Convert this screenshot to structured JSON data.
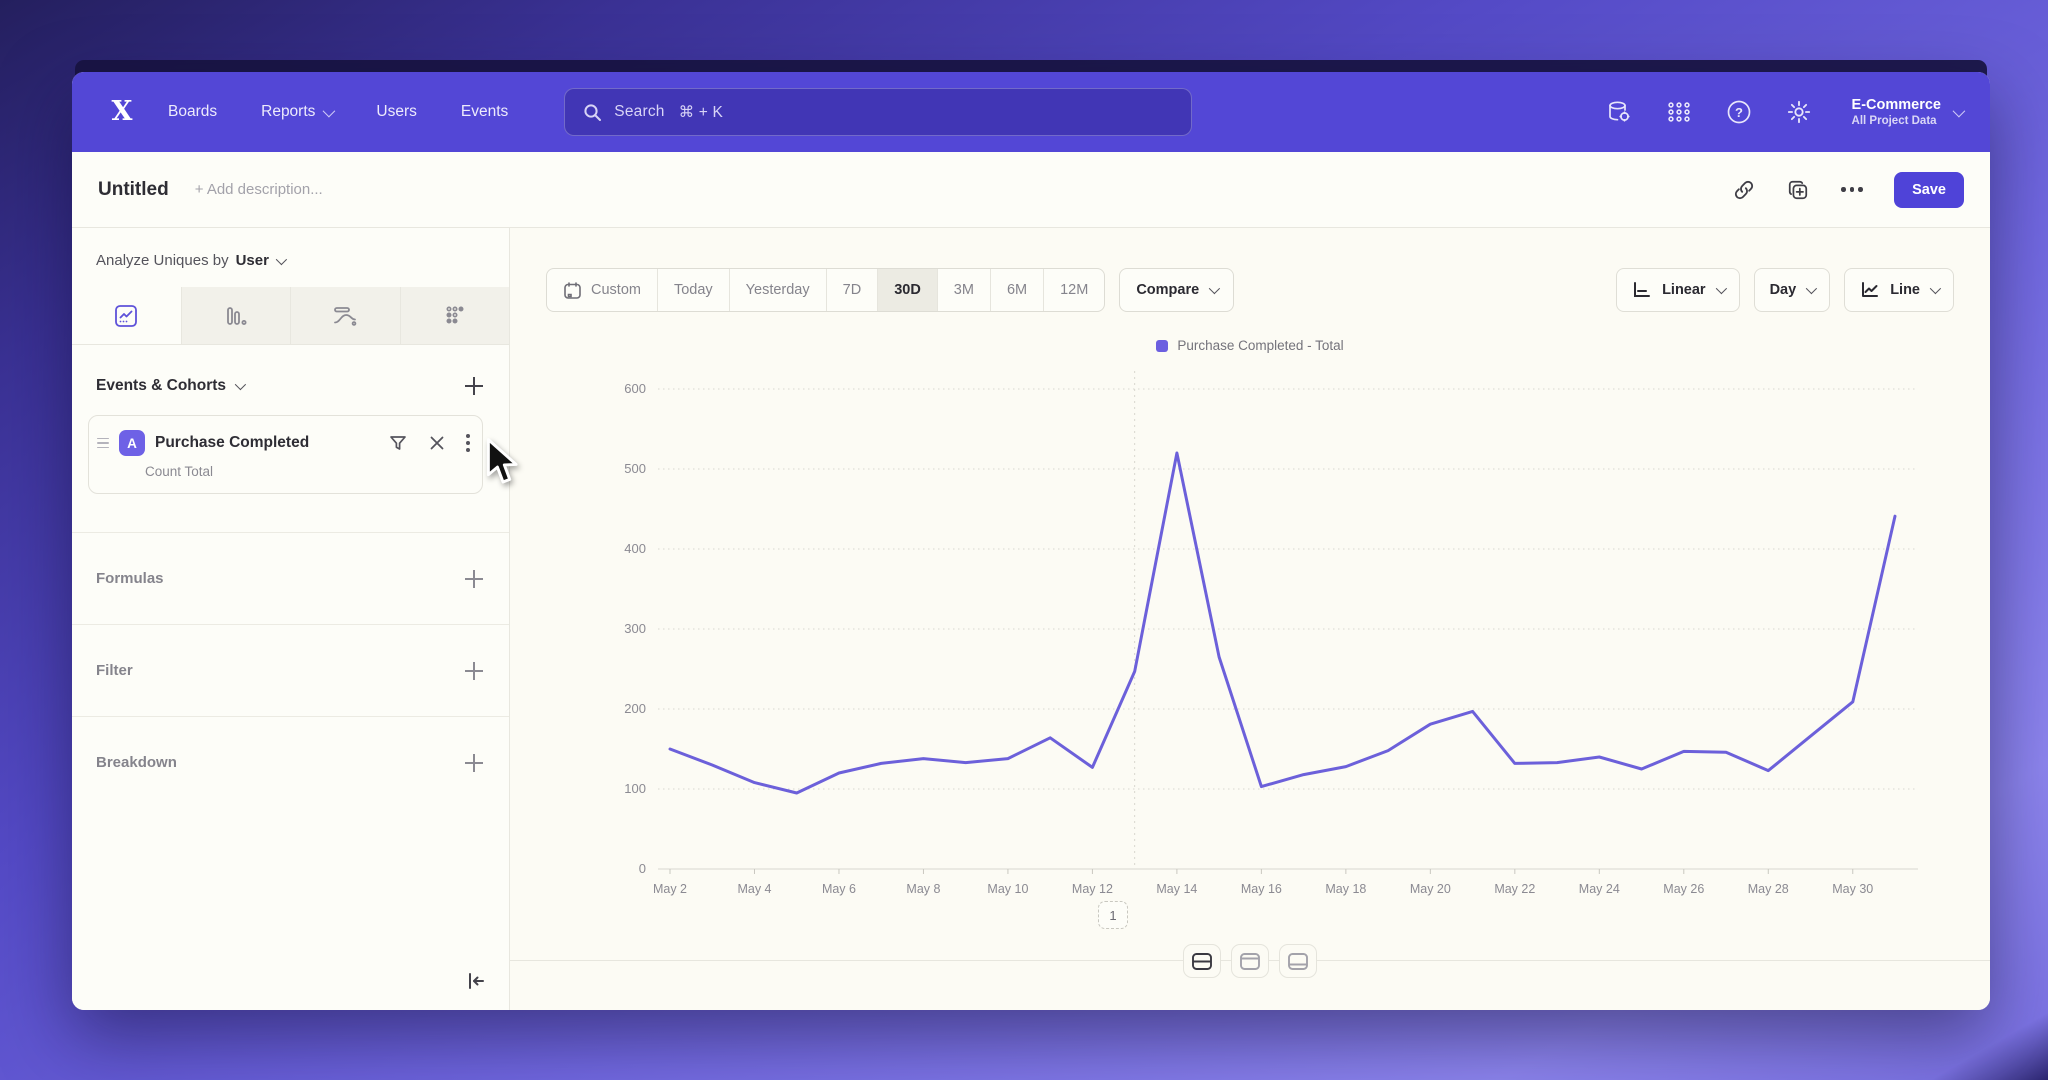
{
  "nav": {
    "logo_glyph": "X",
    "links": [
      {
        "label": "Boards",
        "dropdown": false
      },
      {
        "label": "Reports",
        "dropdown": true
      },
      {
        "label": "Users",
        "dropdown": false
      },
      {
        "label": "Events",
        "dropdown": false
      }
    ],
    "search": {
      "placeholder": "Search",
      "shortcut": "⌘ + K"
    },
    "help_glyph": "?",
    "project": {
      "name": "E-Commerce",
      "subtitle": "All Project Data"
    }
  },
  "toolbar": {
    "title": "Untitled",
    "description_placeholder": "+ Add description...",
    "save_label": "Save"
  },
  "sidebar": {
    "analyze": {
      "prefix": "Analyze Uniques by",
      "value": "User"
    },
    "tabs": [
      "insights-line",
      "bar-chart",
      "flows",
      "retention-dots"
    ],
    "events_section_title": "Events & Cohorts",
    "event_card": {
      "badge": "A",
      "title": "Purchase Completed",
      "subtitle": "Count Total"
    },
    "sections": [
      {
        "label": "Formulas"
      },
      {
        "label": "Filter"
      },
      {
        "label": "Breakdown"
      }
    ]
  },
  "controls": {
    "ranges": [
      "Custom",
      "Today",
      "Yesterday",
      "7D",
      "30D",
      "3M",
      "6M",
      "12M"
    ],
    "active_range": "30D",
    "compare_label": "Compare",
    "scale_label": "Linear",
    "interval_label": "Day",
    "chart_type_label": "Line"
  },
  "chart_data": {
    "type": "line",
    "title": "",
    "xlabel": "",
    "ylabel": "",
    "ylim": [
      0,
      600
    ],
    "yticks": [
      0,
      100,
      200,
      300,
      400,
      500,
      600
    ],
    "grid": "horizontal-dotted",
    "legend_position": "top-center",
    "vline_category": "May 13",
    "x": [
      "May 2",
      "May 3",
      "May 4",
      "May 5",
      "May 6",
      "May 7",
      "May 8",
      "May 9",
      "May 10",
      "May 11",
      "May 12",
      "May 13",
      "May 14",
      "May 15",
      "May 16",
      "May 17",
      "May 18",
      "May 19",
      "May 20",
      "May 21",
      "May 22",
      "May 23",
      "May 24",
      "May 25",
      "May 26",
      "May 27",
      "May 28",
      "May 29",
      "May 30",
      "May 31"
    ],
    "x_tick_labels": [
      "May 2",
      "May 4",
      "May 6",
      "May 8",
      "May 10",
      "May 12",
      "May 14",
      "May 16",
      "May 18",
      "May 20",
      "May 22",
      "May 24",
      "May 26",
      "May 28",
      "May 30"
    ],
    "series": [
      {
        "name": "Purchase Completed - Total",
        "color": "#6c60da",
        "values": [
          150,
          130,
          108,
          95,
          120,
          132,
          138,
          133,
          138,
          164,
          127,
          247,
          520,
          265,
          103,
          118,
          128,
          148,
          181,
          197,
          132,
          133,
          140,
          125,
          147,
          146,
          123,
          166,
          209,
          441
        ]
      }
    ]
  },
  "footer": {
    "pagination": "1"
  },
  "colors": {
    "accent": "#5347d6",
    "chart_line": "#6c60da",
    "legend_swatch": "#6c5fe0"
  }
}
